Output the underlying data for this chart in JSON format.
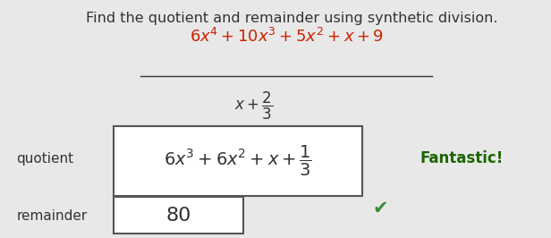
{
  "title": "Find the quotient and remainder using synthetic division.",
  "bg_color": "#e8e8e8",
  "white": "#ffffff",
  "text_color": "#333333",
  "red_color": "#cc2200",
  "green_color": "#3a8a3a",
  "fraction_color": "#cc2200",
  "box_edge_color": "#555555",
  "title_fontsize": 11.5,
  "label_fontsize": 11,
  "math_fontsize": 13,
  "small_math_fontsize": 12,
  "fantastic_fontsize": 12
}
